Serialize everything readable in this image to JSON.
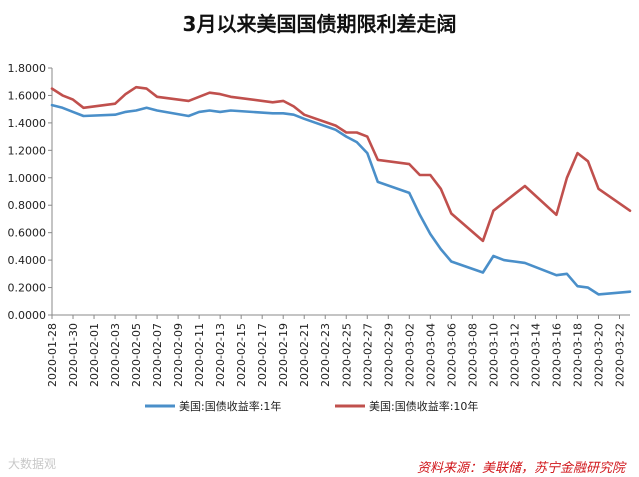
{
  "title": "3月以来美国国债期限利差走阔",
  "source": "资料来源：美联储，苏宁金融研究院",
  "watermark": "大数据观",
  "chart_data": {
    "type": "line",
    "title": "3月以来美国国债期限利差走阔",
    "ylim": [
      0,
      1.8
    ],
    "y_ticks": [
      "0.0000",
      "0.2000",
      "0.4000",
      "0.6000",
      "0.8000",
      "1.0000",
      "1.2000",
      "1.4000",
      "1.6000",
      "1.8000"
    ],
    "x_tick_labels": [
      "2020-01-28",
      "2020-01-30",
      "2020-02-01",
      "2020-02-03",
      "2020-02-05",
      "2020-02-07",
      "2020-02-09",
      "2020-02-11",
      "2020-02-13",
      "2020-02-15",
      "2020-02-17",
      "2020-02-19",
      "2020-02-21",
      "2020-02-23",
      "2020-02-25",
      "2020-02-27",
      "2020-02-29",
      "2020-03-02",
      "2020-03-04",
      "2020-03-06",
      "2020-03-08",
      "2020-03-10",
      "2020-03-12",
      "2020-03-14",
      "2020-03-16",
      "2020-03-18",
      "2020-03-20",
      "2020-03-22"
    ],
    "legend_position": "bottom",
    "grid": false,
    "series": [
      {
        "name": "美国:国债收益率:1年",
        "color": "#4a8fc9",
        "points": [
          [
            "2020-01-28",
            1.53
          ],
          [
            "2020-01-29",
            1.51
          ],
          [
            "2020-01-30",
            1.48
          ],
          [
            "2020-01-31",
            1.45
          ],
          [
            "2020-02-03",
            1.46
          ],
          [
            "2020-02-04",
            1.48
          ],
          [
            "2020-02-05",
            1.49
          ],
          [
            "2020-02-06",
            1.51
          ],
          [
            "2020-02-07",
            1.49
          ],
          [
            "2020-02-10",
            1.45
          ],
          [
            "2020-02-11",
            1.48
          ],
          [
            "2020-02-12",
            1.49
          ],
          [
            "2020-02-13",
            1.48
          ],
          [
            "2020-02-14",
            1.49
          ],
          [
            "2020-02-18",
            1.47
          ],
          [
            "2020-02-19",
            1.47
          ],
          [
            "2020-02-20",
            1.46
          ],
          [
            "2020-02-21",
            1.43
          ],
          [
            "2020-02-24",
            1.35
          ],
          [
            "2020-02-25",
            1.3
          ],
          [
            "2020-02-26",
            1.26
          ],
          [
            "2020-02-27",
            1.18
          ],
          [
            "2020-02-28",
            0.97
          ],
          [
            "2020-03-02",
            0.89
          ],
          [
            "2020-03-03",
            0.73
          ],
          [
            "2020-03-04",
            0.59
          ],
          [
            "2020-03-05",
            0.48
          ],
          [
            "2020-03-06",
            0.39
          ],
          [
            "2020-03-09",
            0.31
          ],
          [
            "2020-03-10",
            0.43
          ],
          [
            "2020-03-11",
            0.4
          ],
          [
            "2020-03-12",
            0.39
          ],
          [
            "2020-03-13",
            0.38
          ],
          [
            "2020-03-16",
            0.29
          ],
          [
            "2020-03-17",
            0.3
          ],
          [
            "2020-03-18",
            0.21
          ],
          [
            "2020-03-19",
            0.2
          ],
          [
            "2020-03-20",
            0.15
          ],
          [
            "2020-03-23",
            0.17
          ]
        ]
      },
      {
        "name": "美国:国债收益率:10年",
        "color": "#c0504d",
        "points": [
          [
            "2020-01-28",
            1.65
          ],
          [
            "2020-01-29",
            1.6
          ],
          [
            "2020-01-30",
            1.57
          ],
          [
            "2020-01-31",
            1.51
          ],
          [
            "2020-02-03",
            1.54
          ],
          [
            "2020-02-04",
            1.61
          ],
          [
            "2020-02-05",
            1.66
          ],
          [
            "2020-02-06",
            1.65
          ],
          [
            "2020-02-07",
            1.59
          ],
          [
            "2020-02-10",
            1.56
          ],
          [
            "2020-02-11",
            1.59
          ],
          [
            "2020-02-12",
            1.62
          ],
          [
            "2020-02-13",
            1.61
          ],
          [
            "2020-02-14",
            1.59
          ],
          [
            "2020-02-18",
            1.55
          ],
          [
            "2020-02-19",
            1.56
          ],
          [
            "2020-02-20",
            1.52
          ],
          [
            "2020-02-21",
            1.46
          ],
          [
            "2020-02-24",
            1.38
          ],
          [
            "2020-02-25",
            1.33
          ],
          [
            "2020-02-26",
            1.33
          ],
          [
            "2020-02-27",
            1.3
          ],
          [
            "2020-02-28",
            1.13
          ],
          [
            "2020-03-02",
            1.1
          ],
          [
            "2020-03-03",
            1.02
          ],
          [
            "2020-03-04",
            1.02
          ],
          [
            "2020-03-05",
            0.92
          ],
          [
            "2020-03-06",
            0.74
          ],
          [
            "2020-03-09",
            0.54
          ],
          [
            "2020-03-10",
            0.76
          ],
          [
            "2020-03-11",
            0.82
          ],
          [
            "2020-03-12",
            0.88
          ],
          [
            "2020-03-13",
            0.94
          ],
          [
            "2020-03-16",
            0.73
          ],
          [
            "2020-03-17",
            1.0
          ],
          [
            "2020-03-18",
            1.18
          ],
          [
            "2020-03-19",
            1.12
          ],
          [
            "2020-03-20",
            0.92
          ],
          [
            "2020-03-23",
            0.76
          ]
        ]
      }
    ]
  }
}
